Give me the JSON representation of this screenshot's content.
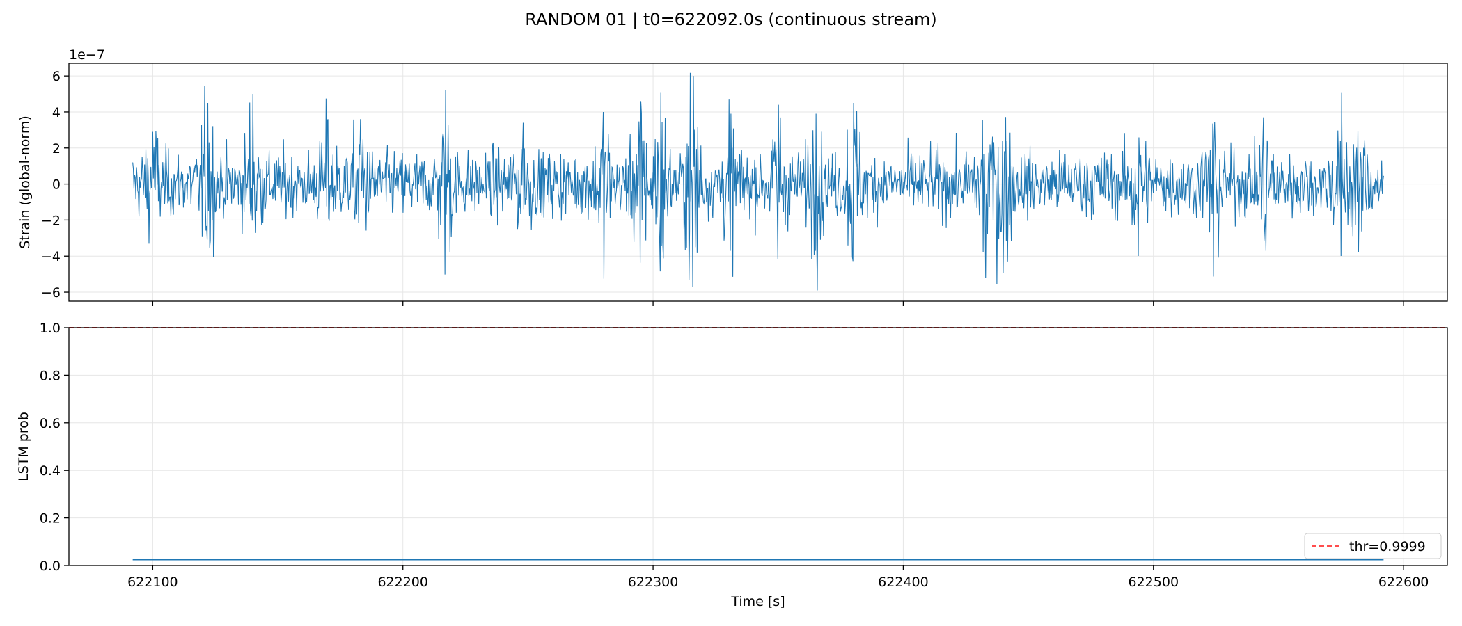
{
  "figure": {
    "suptitle": "RANDOM 01 | t0=622092.0s (continuous stream)"
  },
  "colors": {
    "strain": "#1f77b4",
    "prob": "#1f77b4",
    "threshold": "#ff4d4d",
    "grid": "#e6e6e6"
  },
  "chart_data": [
    {
      "type": "line",
      "ylabel": "Strain (global-norm)",
      "offset_text": "1e−7",
      "xlim": [
        622066.5,
        622617.5
      ],
      "ylim": [
        -6.5,
        6.7
      ],
      "y_multiplier": 1e-07,
      "yticks": [
        -6,
        -4,
        -2,
        0,
        2,
        4,
        6
      ],
      "ytick_labels": [
        "−6",
        "−4",
        "−2",
        "0",
        "2",
        "4",
        "6"
      ],
      "grid": true,
      "series": [
        {
          "x_range": [
            622092.0,
            622592.0
          ],
          "sample_count": 2000,
          "noise_amplitude": 1.2,
          "bursts": [
            {
              "x": 622100.0,
              "peak": 2.9
            },
            {
              "x": 622122.0,
              "peak": 4.5
            },
            {
              "x": 622140.0,
              "peak": 5.0
            },
            {
              "x": 622170.0,
              "peak": 3.6
            },
            {
              "x": 622183.0,
              "peak": 3.6
            },
            {
              "x": 622217.0,
              "peak": 5.2
            },
            {
              "x": 622248.0,
              "peak": 3.4
            },
            {
              "x": 622280.0,
              "peak": 4.0
            },
            {
              "x": 622295.0,
              "peak": 4.6
            },
            {
              "x": 622303.0,
              "peak": 5.1
            },
            {
              "x": 622316.0,
              "peak": 6.0
            },
            {
              "x": 622331.0,
              "peak": 3.9
            },
            {
              "x": 622350.0,
              "peak": 4.4
            },
            {
              "x": 622365.0,
              "peak": 3.9
            },
            {
              "x": 622380.0,
              "peak": 4.5
            },
            {
              "x": 622433.0,
              "peak": 5.5
            },
            {
              "x": 622440.0,
              "peak": 5.2
            },
            {
              "x": 622494.0,
              "peak": 4.2
            },
            {
              "x": 622524.0,
              "peak": 5.4
            },
            {
              "x": 622545.0,
              "peak": 3.9
            },
            {
              "x": 622575.0,
              "peak": 4.2
            },
            {
              "x": 622582.0,
              "peak": 4.0
            }
          ]
        }
      ]
    },
    {
      "type": "line",
      "xlabel": "Time [s]",
      "ylabel": "LSTM prob",
      "xlim": [
        622066.5,
        622617.5
      ],
      "ylim": [
        0.0,
        1.0
      ],
      "xticks": [
        622100,
        622200,
        622300,
        622400,
        622500,
        622600
      ],
      "xtick_labels": [
        "622100",
        "622200",
        "622300",
        "622400",
        "622500",
        "622600"
      ],
      "yticks": [
        0.0,
        0.2,
        0.4,
        0.6,
        0.8,
        1.0
      ],
      "ytick_labels": [
        "0.0",
        "0.2",
        "0.4",
        "0.6",
        "0.8",
        "1.0"
      ],
      "grid": true,
      "series": [
        {
          "x": [
            622092.0,
            622592.0
          ],
          "y": [
            0.025,
            0.025
          ]
        }
      ],
      "threshold": {
        "value": 0.9999,
        "label": "thr=0.9999"
      },
      "legend": {
        "position": "lower-right",
        "entries": [
          "thr=0.9999"
        ]
      }
    }
  ]
}
